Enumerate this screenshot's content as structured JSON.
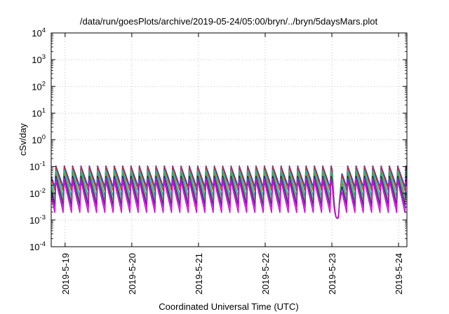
{
  "chart_data": {
    "type": "line",
    "title": "/data/run/goesPlots/archive/2019-05-24/05:00/bryn/../bryn/5daysMars.plot",
    "xlabel": "Coordinated Universal Time (UTC)",
    "ylabel": "cSv/day",
    "y_scale": "log",
    "ylim": [
      0.0001,
      10000
    ],
    "xlim": [
      "2019-05-18T19:00",
      "2019-05-24T03:00"
    ],
    "grid": true,
    "x_ticks": [
      {
        "x": "2019-05-19T00:00",
        "label": "2019-5-19"
      },
      {
        "x": "2019-05-20T00:00",
        "label": "2019-5-20"
      },
      {
        "x": "2019-05-21T00:00",
        "label": "2019-5-21"
      },
      {
        "x": "2019-05-22T00:00",
        "label": "2019-5-22"
      },
      {
        "x": "2019-05-23T00:00",
        "label": "2019-5-23"
      },
      {
        "x": "2019-05-24T00:00",
        "label": "2019-5-24"
      }
    ],
    "y_ticks": [
      {
        "value": 0.0001,
        "base": "10",
        "exp": "-4"
      },
      {
        "value": 0.001,
        "base": "10",
        "exp": "-3"
      },
      {
        "value": 0.01,
        "base": "10",
        "exp": "-2"
      },
      {
        "value": 0.1,
        "base": "10",
        "exp": "-1"
      },
      {
        "value": 1,
        "base": "10",
        "exp": "0"
      },
      {
        "value": 10,
        "base": "10",
        "exp": "1"
      },
      {
        "value": 100,
        "base": "10",
        "exp": "2"
      },
      {
        "value": 1000,
        "base": "10",
        "exp": "3"
      },
      {
        "value": 10000,
        "base": "10",
        "exp": "4"
      }
    ],
    "orbit_hours": 3,
    "dip": {
      "start": "2019-05-23T00:10",
      "end": "2019-05-23T05:00",
      "bottom": 0.0008
    },
    "series": [
      {
        "color": "#2a3fcc",
        "peak": 0.11,
        "trough": 0.017
      },
      {
        "color": "#cc2a2a",
        "peak": 0.1,
        "trough": 0.012
      },
      {
        "color": "#20b2aa",
        "peak": 0.075,
        "trough": 0.0075
      },
      {
        "color": "#3cb043",
        "peak": 0.06,
        "trough": 0.005
      },
      {
        "color": "#222222",
        "peak": 0.045,
        "trough": 0.0035
      },
      {
        "color": "#8a2be2",
        "peak": 0.038,
        "trough": 0.0028
      },
      {
        "color": "#e000e0",
        "peak": 0.03,
        "trough": 0.0018
      }
    ]
  }
}
